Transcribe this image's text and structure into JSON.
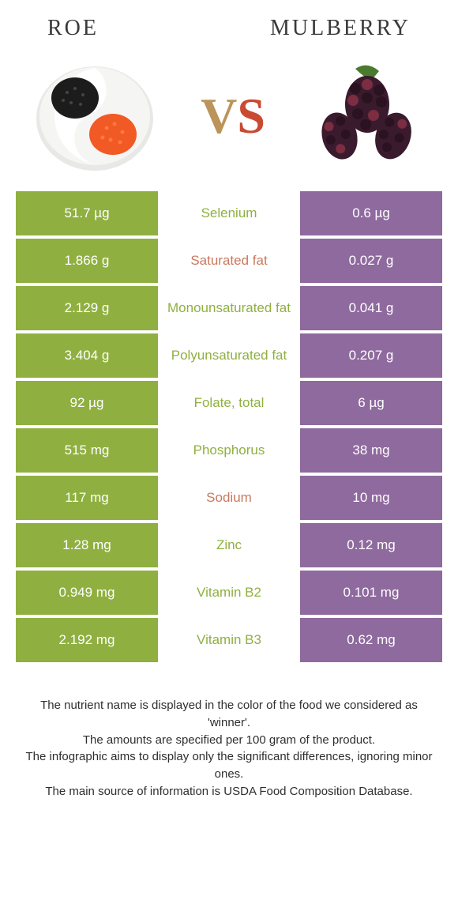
{
  "header": {
    "left_title": "Roe",
    "right_title": "Mulberry"
  },
  "vs": {
    "v": "V",
    "s": "S"
  },
  "colors": {
    "left_bg": "#8fb040",
    "right_bg": "#8f6a9e",
    "win_left_text": "#8fb040",
    "win_right_text": "#c97a5f"
  },
  "rows": [
    {
      "left": "51.7 µg",
      "label": "Selenium",
      "right": "0.6 µg",
      "winner": "left"
    },
    {
      "left": "1.866 g",
      "label": "Saturated fat",
      "right": "0.027 g",
      "winner": "right"
    },
    {
      "left": "2.129 g",
      "label": "Monounsaturated fat",
      "right": "0.041 g",
      "winner": "left"
    },
    {
      "left": "3.404 g",
      "label": "Polyunsaturated fat",
      "right": "0.207 g",
      "winner": "left"
    },
    {
      "left": "92 µg",
      "label": "Folate, total",
      "right": "6 µg",
      "winner": "left"
    },
    {
      "left": "515 mg",
      "label": "Phosphorus",
      "right": "38 mg",
      "winner": "left"
    },
    {
      "left": "117 mg",
      "label": "Sodium",
      "right": "10 mg",
      "winner": "right"
    },
    {
      "left": "1.28 mg",
      "label": "Zinc",
      "right": "0.12 mg",
      "winner": "left"
    },
    {
      "left": "0.949 mg",
      "label": "Vitamin B2",
      "right": "0.101 mg",
      "winner": "left"
    },
    {
      "left": "2.192 mg",
      "label": "Vitamin B3",
      "right": "0.62 mg",
      "winner": "left"
    }
  ],
  "footer": {
    "line1": "The nutrient name is displayed in the color of the food we considered as 'winner'.",
    "line2": "The amounts are specified per 100 gram of the product.",
    "line3": "The infographic aims to display only the significant differences, ignoring minor ones.",
    "line4": "The main source of information is USDA Food Composition Database."
  },
  "images": {
    "roe": {
      "plate_fill": "#f5f5f3",
      "black_roe": "#1c1c1c",
      "orange_roe": "#f15a24"
    },
    "mulberry": {
      "body": "#3a1b2e",
      "highlight": "#7c2d42",
      "leaf": "#4a7a2e"
    }
  }
}
